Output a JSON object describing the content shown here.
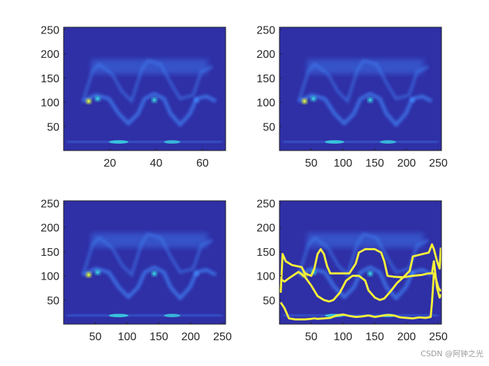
{
  "colors": {
    "background": "#2f2fa6",
    "ridge_mid": "#3f7ff2",
    "ridge_hi": "#39d0e0",
    "peak": "#d8f040",
    "track": "#f5f03a",
    "axis": "#262626"
  },
  "watermark": "CSDN @阿钟之光",
  "chart_data": [
    {
      "type": "heatmap",
      "xlim": [
        0,
        70
      ],
      "ylim": [
        0,
        255
      ],
      "xticks": [
        "20",
        "40",
        "60"
      ],
      "yticks": [
        "50",
        "100",
        "150",
        "200",
        "250"
      ],
      "tracks": []
    },
    {
      "type": "heatmap",
      "xlim": [
        0,
        255
      ],
      "ylim": [
        0,
        255
      ],
      "xticks": [
        "50",
        "100",
        "150",
        "200",
        "250"
      ],
      "yticks": [
        "50",
        "100",
        "150",
        "200",
        "250"
      ],
      "tracks": []
    },
    {
      "type": "heatmap",
      "xlim": [
        0,
        255
      ],
      "ylim": [
        0,
        255
      ],
      "xticks": [
        "50",
        "100",
        "150",
        "200",
        "250"
      ],
      "yticks": [
        "50",
        "100",
        "150",
        "200",
        "250"
      ],
      "tracks": []
    },
    {
      "type": "heatmap",
      "xlim": [
        0,
        255
      ],
      "ylim": [
        0,
        255
      ],
      "xticks": [
        "50",
        "100",
        "150",
        "200",
        "250"
      ],
      "yticks": [
        "50",
        "100",
        "150",
        "200",
        "250"
      ],
      "tracks": [
        {
          "points": [
            [
              2,
              65
            ],
            [
              5,
              145
            ],
            [
              10,
              130
            ],
            [
              20,
              122
            ],
            [
              35,
              118
            ],
            [
              40,
              105
            ],
            [
              50,
              100
            ],
            [
              55,
              115
            ],
            [
              60,
              145
            ],
            [
              65,
              155
            ],
            [
              70,
              145
            ],
            [
              75,
              120
            ],
            [
              80,
              105
            ],
            [
              90,
              105
            ],
            [
              100,
              105
            ],
            [
              110,
              105
            ],
            [
              120,
              125
            ],
            [
              125,
              148
            ],
            [
              135,
              155
            ],
            [
              150,
              155
            ],
            [
              160,
              148
            ],
            [
              165,
              130
            ],
            [
              170,
              100
            ],
            [
              180,
              98
            ],
            [
              195,
              97
            ],
            [
              205,
              110
            ],
            [
              210,
              140
            ],
            [
              225,
              145
            ],
            [
              235,
              148
            ],
            [
              240,
              165
            ],
            [
              243,
              155
            ],
            [
              248,
              130
            ],
            [
              252,
              115
            ],
            [
              254,
              158
            ]
          ]
        },
        {
          "points": [
            [
              2,
              93
            ],
            [
              8,
              88
            ],
            [
              15,
              95
            ],
            [
              30,
              108
            ],
            [
              40,
              98
            ],
            [
              50,
              80
            ],
            [
              60,
              58
            ],
            [
              70,
              50
            ],
            [
              78,
              47
            ],
            [
              85,
              50
            ],
            [
              95,
              65
            ],
            [
              105,
              90
            ],
            [
              115,
              100
            ],
            [
              125,
              100
            ],
            [
              135,
              90
            ],
            [
              140,
              70
            ],
            [
              150,
              55
            ],
            [
              158,
              50
            ],
            [
              165,
              53
            ],
            [
              175,
              68
            ],
            [
              185,
              85
            ],
            [
              195,
              97
            ],
            [
              210,
              100
            ],
            [
              225,
              102
            ],
            [
              235,
              105
            ],
            [
              240,
              105
            ],
            [
              243,
              130
            ],
            [
              248,
              75
            ],
            [
              252,
              55
            ],
            [
              254,
              62
            ]
          ]
        },
        {
          "points": [
            [
              2,
              45
            ],
            [
              8,
              33
            ],
            [
              15,
              12
            ],
            [
              25,
              10
            ],
            [
              40,
              10
            ],
            [
              50,
              11
            ],
            [
              55,
              12
            ],
            [
              60,
              11
            ],
            [
              70,
              12
            ],
            [
              80,
              13
            ],
            [
              90,
              18
            ],
            [
              100,
              20
            ],
            [
              110,
              17
            ],
            [
              120,
              15
            ],
            [
              130,
              16
            ],
            [
              140,
              18
            ],
            [
              150,
              15
            ],
            [
              160,
              17
            ],
            [
              170,
              19
            ],
            [
              180,
              18
            ],
            [
              190,
              14
            ],
            [
              200,
              13
            ],
            [
              210,
              12
            ],
            [
              220,
              14
            ],
            [
              230,
              13
            ],
            [
              238,
              15
            ],
            [
              240,
              45
            ],
            [
              243,
              105
            ],
            [
              246,
              95
            ],
            [
              250,
              75
            ],
            [
              254,
              68
            ]
          ]
        }
      ]
    }
  ]
}
